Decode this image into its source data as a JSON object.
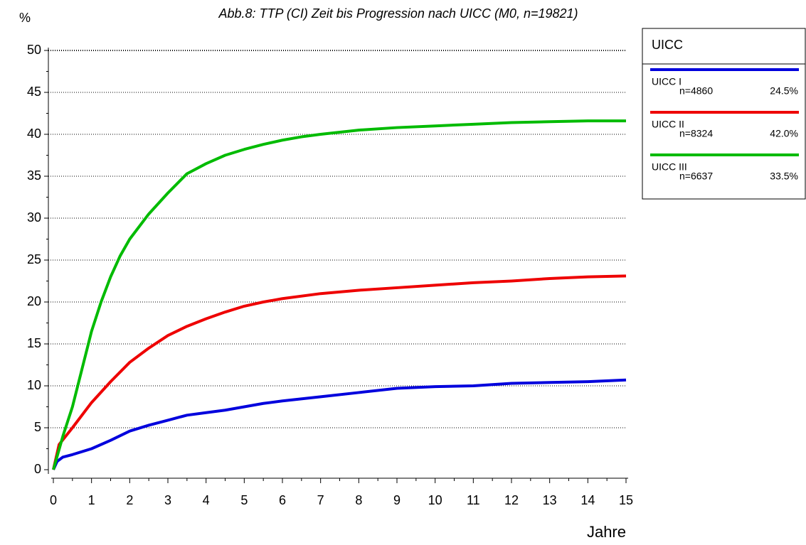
{
  "chart_data": {
    "type": "line",
    "title": "Abb.8: TTP (CI) Zeit bis Progression nach UICC (M0, n=19821)",
    "y_label": "%",
    "x_label": "Jahre",
    "xlim": [
      0,
      15
    ],
    "xticks": [
      0,
      1,
      2,
      3,
      4,
      5,
      6,
      7,
      8,
      9,
      10,
      11,
      12,
      13,
      14,
      15
    ],
    "ylim": [
      0,
      50
    ],
    "yticks": [
      0,
      5,
      10,
      15,
      20,
      25,
      30,
      35,
      40,
      45,
      50
    ],
    "grid": true,
    "legend_title": "UICC",
    "legend_position": "upper right",
    "series": [
      {
        "name": "UICC I",
        "color": "#0000dd",
        "n_label": "n=4860",
        "share_label": "24.5%",
        "x": [
          0,
          0.1,
          0.25,
          0.5,
          1,
          1.5,
          2,
          2.5,
          3,
          3.5,
          4,
          4.5,
          5,
          5.5,
          6,
          7,
          8,
          9,
          10,
          11,
          12,
          13,
          14,
          15
        ],
        "values": [
          0,
          1,
          1.5,
          1.8,
          2.5,
          3.5,
          4.6,
          5.3,
          5.9,
          6.5,
          6.8,
          7.1,
          7.5,
          7.9,
          8.2,
          8.7,
          9.2,
          9.7,
          9.9,
          10,
          10.3,
          10.4,
          10.5,
          10.7
        ]
      },
      {
        "name": "UICC II",
        "color": "#ee0000",
        "n_label": "n=8324",
        "share_label": "42.0%",
        "x": [
          0,
          0.15,
          0.5,
          1,
          1.5,
          2,
          2.5,
          3,
          3.5,
          4,
          4.5,
          5,
          5.5,
          6,
          7,
          8,
          9,
          10,
          11,
          12,
          13,
          14,
          15
        ],
        "values": [
          0,
          3,
          5,
          8,
          10.5,
          12.8,
          14.5,
          16,
          17.1,
          18,
          18.8,
          19.5,
          20,
          20.4,
          21,
          21.4,
          21.7,
          22,
          22.3,
          22.5,
          22.8,
          23,
          23.1
        ]
      },
      {
        "name": "UICC III",
        "color": "#00bb00",
        "n_label": "n=6637",
        "share_label": "33.5%",
        "x": [
          0,
          0.25,
          0.5,
          0.75,
          1,
          1.25,
          1.5,
          1.75,
          2,
          2.5,
          3,
          3.5,
          4,
          4.5,
          5,
          5.5,
          6,
          6.5,
          7,
          8,
          9,
          10,
          11,
          12,
          13,
          14,
          15
        ],
        "values": [
          0,
          4,
          7.5,
          12,
          16.5,
          20,
          23,
          25.5,
          27.5,
          30.5,
          33,
          35.3,
          36.5,
          37.5,
          38.2,
          38.8,
          39.3,
          39.7,
          40,
          40.5,
          40.8,
          41,
          41.2,
          41.4,
          41.5,
          41.6,
          41.6
        ]
      }
    ]
  }
}
